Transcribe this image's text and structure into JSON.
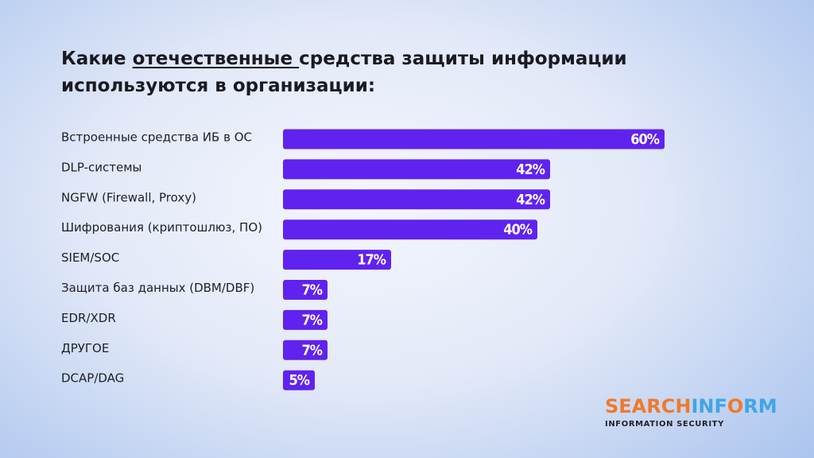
{
  "title": {
    "part1": "Какие ",
    "underlined": "отечественные ",
    "part2": "средства защиты информации используются в организации:"
  },
  "chart_data": {
    "type": "bar",
    "orientation": "horizontal",
    "categories": [
      "Встроенные средства ИБ в ОС",
      "DLP-системы",
      "NGFW (Firewall, Proxy)",
      "Шифрования (криптошлюз, ПО)",
      "SIEM/SOC",
      "Защита баз данных (DBM/DBF)",
      "EDR/XDR",
      "ДРУГОЕ",
      "DCAP/DAG"
    ],
    "values": [
      60,
      42,
      42,
      40,
      17,
      7,
      7,
      7,
      5
    ],
    "value_labels": [
      "60%",
      "42%",
      "42%",
      "40%",
      "17%",
      "7%",
      "7%",
      "7%",
      "5%"
    ],
    "unit": "%",
    "xlim": [
      0,
      60
    ],
    "bar_color": "#6022ee"
  },
  "logo": {
    "part_a": "SEARCH",
    "part_b": "INF",
    "part_c": "O",
    "part_d": "RM",
    "subtitle": "INFORMATION SECURITY"
  }
}
